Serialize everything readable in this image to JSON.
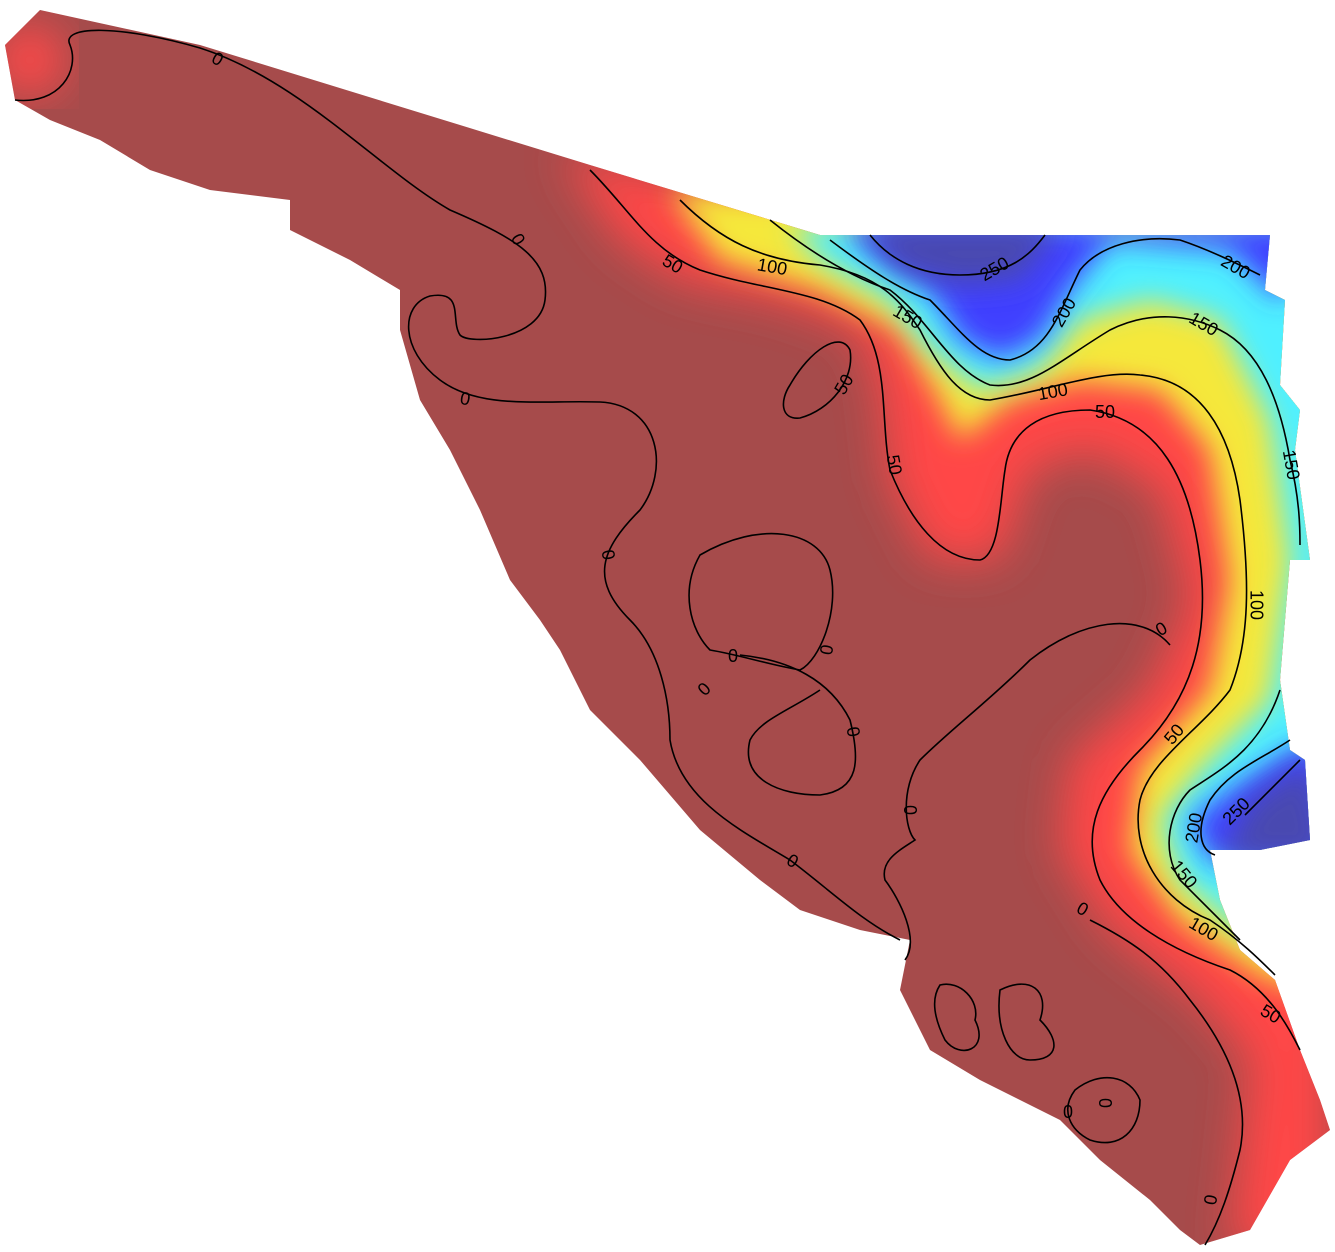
{
  "contour_labels": [
    0,
    0,
    0,
    0,
    0,
    0,
    0,
    0,
    0,
    0,
    0,
    0,
    0,
    0,
    0,
    50,
    50,
    50,
    50,
    50,
    50,
    100,
    100,
    100,
    100,
    150,
    150,
    150,
    150,
    200,
    200,
    200,
    250,
    250
  ]
}
